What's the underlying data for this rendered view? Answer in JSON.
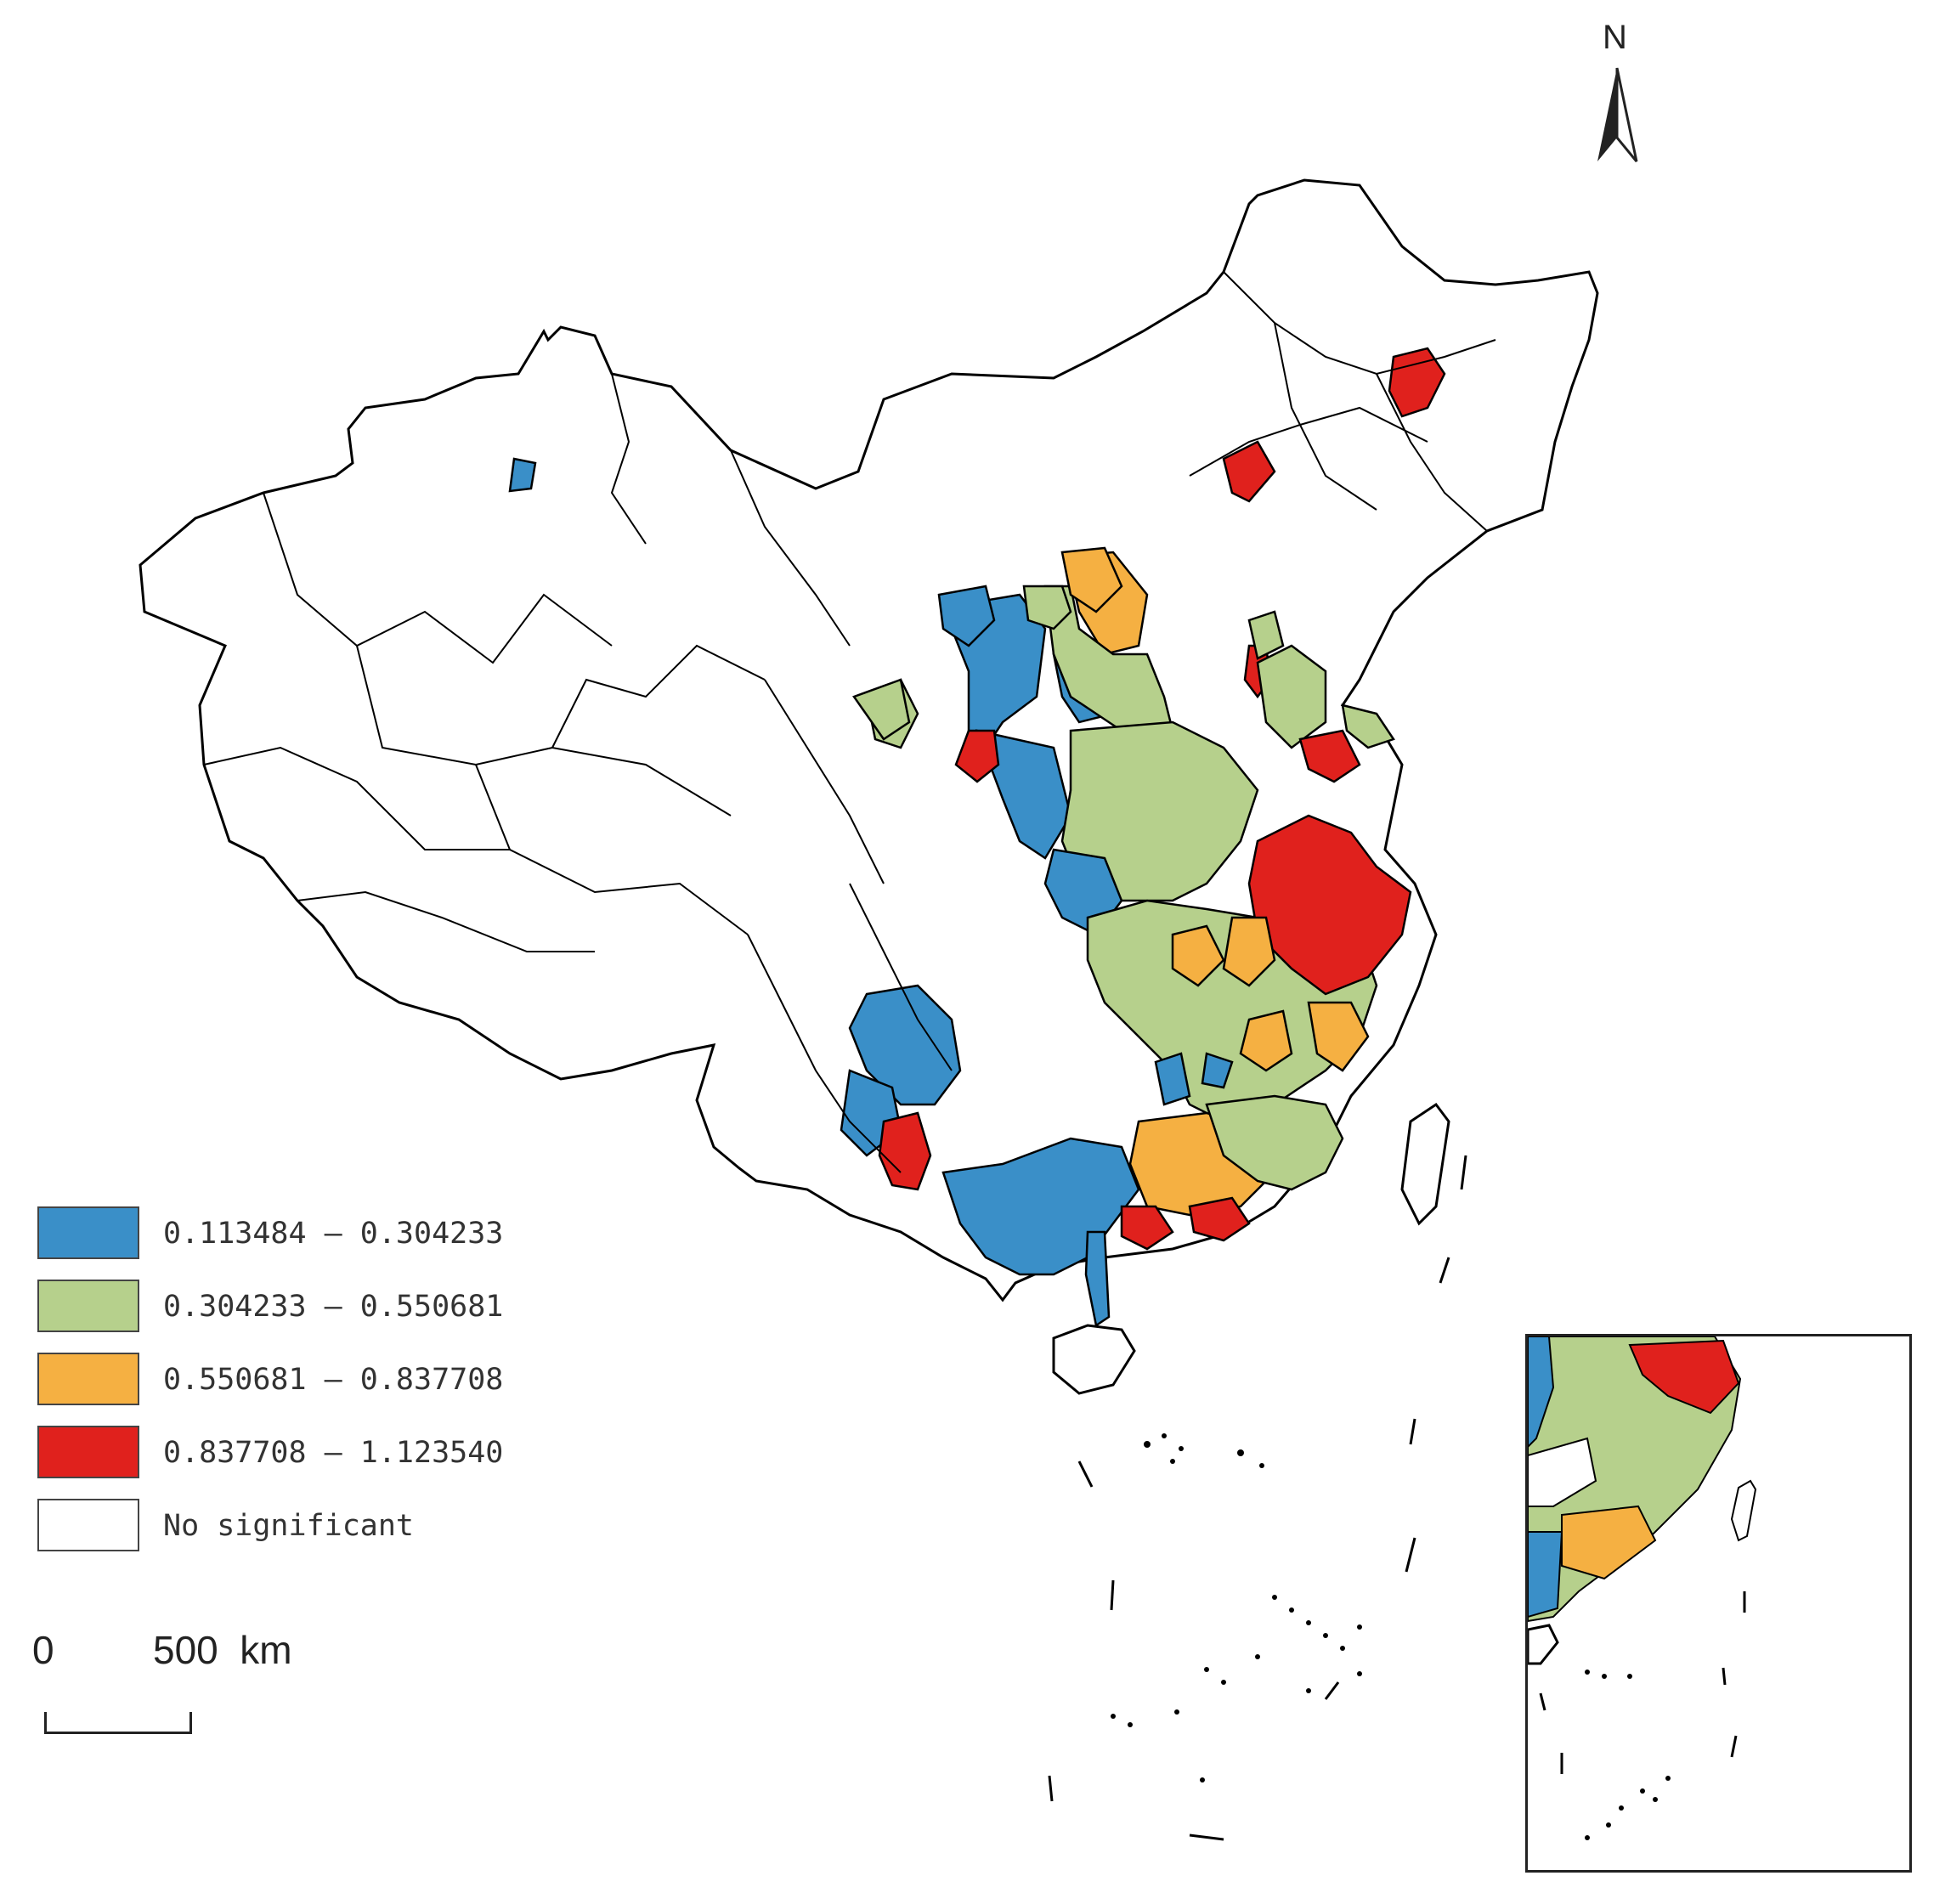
{
  "map": {
    "legend": [
      {
        "label": "0.113484 — 0.304233",
        "color": "#3a8fc8"
      },
      {
        "label": "0.304233 — 0.550681",
        "color": "#b6d08c"
      },
      {
        "label": "0.550681 — 0.837708",
        "color": "#f5b042"
      },
      {
        "label": "0.837708 — 1.123540",
        "color": "#e0211d"
      },
      {
        "label": "No significant",
        "color": "#ffffff"
      }
    ],
    "scale": {
      "zero": "0",
      "distance": "500  km"
    },
    "north": "N",
    "outline_color": "#000000"
  }
}
